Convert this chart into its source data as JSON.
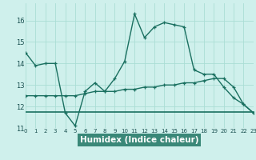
{
  "title": "",
  "xlabel": "Humidex (Indice chaleur)",
  "background_color": "#cff0ec",
  "plot_bg_color": "#cff0ec",
  "bottom_bg_color": "#4a9a8a",
  "grid_color": "#aaddd5",
  "line_color": "#1a7060",
  "x_values": [
    0,
    1,
    2,
    3,
    4,
    5,
    6,
    7,
    8,
    9,
    10,
    11,
    12,
    13,
    14,
    15,
    16,
    17,
    18,
    19,
    20,
    21,
    22,
    23
  ],
  "series1": [
    14.5,
    13.9,
    14.0,
    14.0,
    11.7,
    11.1,
    12.7,
    13.1,
    12.7,
    13.3,
    14.1,
    16.3,
    15.2,
    15.7,
    15.9,
    15.8,
    15.7,
    13.7,
    13.5,
    13.5,
    12.9,
    12.4,
    12.1,
    11.7
  ],
  "series2": [
    12.5,
    12.5,
    12.5,
    12.5,
    12.5,
    12.5,
    12.6,
    12.7,
    12.7,
    12.7,
    12.8,
    12.8,
    12.9,
    12.9,
    13.0,
    13.0,
    13.1,
    13.1,
    13.2,
    13.3,
    13.3,
    12.9,
    12.1,
    11.7
  ],
  "series3": [
    11.75,
    11.75,
    11.75,
    11.75,
    11.75,
    11.75,
    11.75,
    11.75,
    11.75,
    11.75,
    11.75,
    11.75,
    11.75,
    11.75,
    11.75,
    11.75,
    11.75,
    11.75,
    11.75,
    11.75,
    11.75,
    11.75,
    11.75,
    11.75
  ],
  "ylim": [
    11.0,
    16.8
  ],
  "xlim": [
    0,
    23
  ],
  "yticks": [
    11,
    12,
    13,
    14,
    15,
    16
  ],
  "xticks": [
    0,
    1,
    2,
    3,
    4,
    5,
    6,
    7,
    8,
    9,
    10,
    11,
    12,
    13,
    14,
    15,
    16,
    17,
    18,
    19,
    20,
    21,
    22,
    23
  ],
  "xlabel_color": "#ffffff",
  "xlabel_bg": "#3a8878",
  "tick_color": "#1a5050",
  "label_fontsize": 7.5
}
